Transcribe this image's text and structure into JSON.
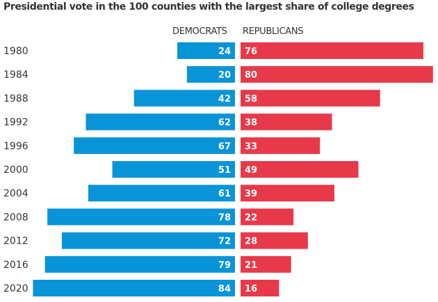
{
  "chart_data": {
    "type": "bar",
    "title": "Presidential vote in the 100 counties with the largest share of college degrees",
    "categories": [
      "1980",
      "1984",
      "1988",
      "1992",
      "1996",
      "2000",
      "2004",
      "2008",
      "2012",
      "2016",
      "2020"
    ],
    "series": [
      {
        "name": "DEMOCRATS",
        "color": "#0a94d8",
        "values": [
          24,
          20,
          42,
          62,
          67,
          51,
          61,
          78,
          72,
          79,
          84
        ]
      },
      {
        "name": "REPUBLICANS",
        "color": "#e8394a",
        "values": [
          76,
          80,
          58,
          38,
          33,
          49,
          39,
          22,
          28,
          21,
          16
        ]
      }
    ],
    "xlim": [
      0,
      100
    ],
    "grid": false,
    "legend": "top-center"
  }
}
